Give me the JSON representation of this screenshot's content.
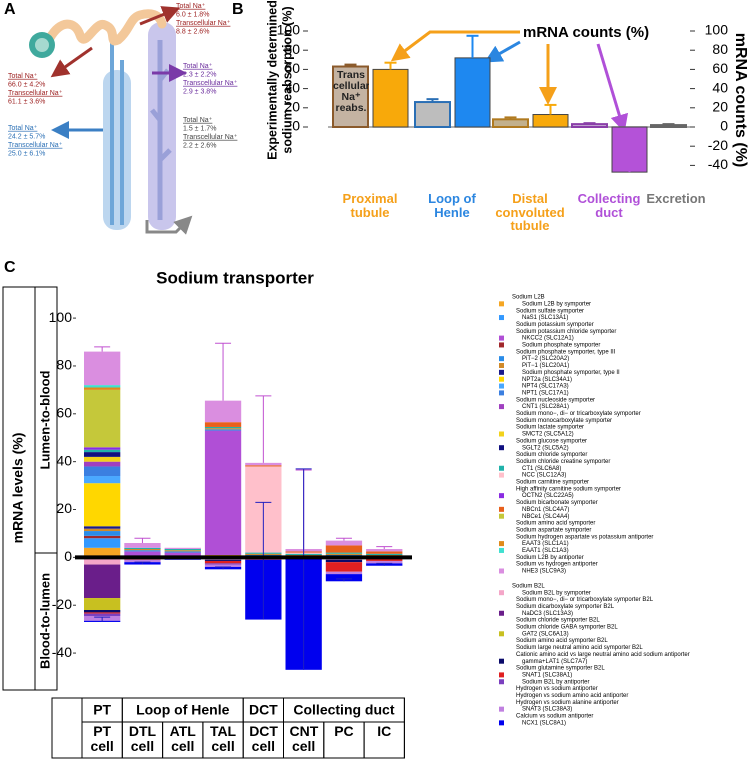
{
  "panel_labels": [
    "A",
    "B",
    "C"
  ],
  "panel_a": {
    "blocks": [
      {
        "color": "#9b1c1c",
        "lines": [
          "Total Na⁺",
          "6.0 ± 1.8%",
          "Transcellular Na⁺",
          "8.8 ± 2.6%"
        ]
      },
      {
        "color": "#9b1c1c",
        "lines": [
          "Total Na⁺",
          "66.0 ± 4.2%",
          "Transcellular Na⁺",
          "61.1 ± 3.6%"
        ]
      },
      {
        "color": "#6a2c9c",
        "lines": [
          "Total Na⁺",
          "2.3 ± 2.2%",
          "Transcellular Na⁺",
          "2.9 ± 3.8%"
        ]
      },
      {
        "color": "#2a6fb5",
        "lines": [
          "Total Na⁺",
          "24.2 ± 5.7%",
          "Transcellular Na⁺",
          "25.0 ± 6.1%"
        ]
      },
      {
        "color": "#444444",
        "lines": [
          "Total Na⁺",
          "1.5 ± 1.7%",
          "Transcellular Na⁺",
          "2.2 ± 2.6%"
        ]
      }
    ]
  },
  "chart_data": [
    {
      "type": "bar",
      "y_label_lines": [
        "Experimentally determined",
        "sodium reabsorption (%)"
      ],
      "y2_label": "mRNA counts (%)",
      "annotations": [
        "mRNA counts (%)",
        "Trans cellular Na⁺ reabs."
      ],
      "categories": [
        "Proximal tubule",
        "Loop of Henle",
        "Distal convoluted tubule",
        "Collecting duct",
        "Excretion"
      ],
      "category_colors": [
        "#f5a01a",
        "#2b86e0",
        "#f5a01a",
        "#b050d8",
        "#777777"
      ],
      "series": [
        {
          "values": [
            63,
            26,
            8,
            3,
            2
          ],
          "errors": [
            2,
            3,
            2,
            1,
            1
          ],
          "colors": [
            "#c4b3a2",
            "#bdbdbd",
            "#c2b08c",
            "#c8b0d6",
            "#bdbdbd"
          ]
        },
        {
          "axis": "y2",
          "values": [
            60,
            72,
            13,
            -47,
            null
          ],
          "errors": [
            7,
            23,
            10,
            44,
            null
          ],
          "colors": [
            "#f8a90a",
            "#1e88f0",
            "#f8a90a",
            "#b452d8",
            null
          ]
        }
      ],
      "ylim": [
        0,
        100
      ],
      "yticks": [
        0,
        20,
        40,
        60,
        80,
        100
      ],
      "y2lim": [
        -50,
        100
      ],
      "y2ticks": [
        100,
        80,
        60,
        40,
        20,
        0,
        -20,
        -40
      ]
    },
    {
      "type": "stacked-bar",
      "title": "Sodium transporter",
      "y_label": "mRNA levels (%)",
      "region_labels": [
        "Lumen-to-blood",
        "Blood-to-lumen"
      ],
      "categories": [
        "PT cell",
        "DTL cell",
        "ATL cell",
        "TAL cell",
        "DCT cell",
        "CNT cell",
        "PC",
        "IC"
      ],
      "groups": [
        "PT",
        "Loop of Henle",
        "DCT",
        "Collecting duct"
      ],
      "ylim": [
        -50,
        113
      ],
      "yticks": [
        -40,
        -20,
        0,
        20,
        40,
        60,
        80,
        100
      ],
      "positive_errors": [
        2,
        2,
        0,
        24,
        28,
        33,
        1,
        1
      ],
      "negative_errors": [
        2,
        1,
        0,
        1,
        49,
        84,
        1,
        1
      ],
      "legend": [
        {
          "label": "Sodium L2B"
        },
        {
          "label": "Sodium L2B by symporter",
          "color": "#f5a623",
          "values": [
            4,
            0.5,
            0,
            1,
            0.5,
            0,
            0.5,
            0
          ]
        },
        {
          "label": "Sodium sulfate symporter"
        },
        {
          "label": "NaS1 (SLC13A1)",
          "color": "#3399ff",
          "values": [
            4,
            0,
            0,
            0,
            0,
            0,
            0,
            0
          ]
        },
        {
          "label": "Sodium potassium symporter"
        },
        {
          "label": "Sodium potassium chloride symporter"
        },
        {
          "label": "NKCC2 (SLC12A1)",
          "color": "#b04fd6",
          "values": [
            0,
            2,
            2,
            52,
            0,
            0,
            0,
            0
          ]
        },
        {
          "label": "Sodium phosphate symporter",
          "color": "#a0282b",
          "values": [
            1,
            0,
            0,
            0,
            0,
            0,
            0,
            0
          ]
        },
        {
          "label": "Sodium phosphate symporter, type III"
        },
        {
          "label": "PiT−2 (SLC20A2)",
          "color": "#2a8ce8",
          "values": [
            2,
            0.5,
            0.5,
            0.5,
            0.5,
            0.5,
            0.5,
            0.5
          ]
        },
        {
          "label": "PiT−1 (SLC20A1)",
          "color": "#d08a2a",
          "values": [
            1,
            0.5,
            0.5,
            0.5,
            0.5,
            0.5,
            0.5,
            0.5
          ]
        },
        {
          "label": "Sodium phosphate symporter, type II",
          "color": "#1a1a8c",
          "values": [
            1,
            0,
            0,
            0,
            0,
            0,
            0,
            0
          ]
        },
        {
          "label": "NPT2a (SLC34A1)",
          "color": "#ffd700",
          "values": [
            18,
            0,
            0,
            0,
            0,
            0,
            0,
            0
          ]
        },
        {
          "label": "NPT4 (SLC17A3)",
          "color": "#4aa8ff",
          "values": [
            3,
            0,
            0,
            0,
            0,
            0,
            0,
            0
          ]
        },
        {
          "label": "NPT1 (SLC17A1)",
          "color": "#3b7fe0",
          "values": [
            4,
            0,
            0,
            0,
            0,
            0,
            0,
            0
          ]
        },
        {
          "label": "Sodium nucleoside symporter"
        },
        {
          "label": "CNT1 (SLC28A1)",
          "color": "#a040c0",
          "values": [
            2,
            0,
            0,
            0,
            0,
            0,
            0,
            0
          ]
        },
        {
          "label": "Sodium mono−, di− or tricarboxylate symporter"
        },
        {
          "label": "Sodium monocarboxylate symporter"
        },
        {
          "label": "Sodium lactate symporter"
        },
        {
          "label": "SMCT2 (SLC5A12)",
          "color": "#f2d21b",
          "values": [
            2,
            0,
            0,
            0,
            0,
            0,
            0,
            0
          ]
        },
        {
          "label": "Sodium glucose symporter"
        },
        {
          "label": "SGLT2 (SLC5A2)",
          "color": "#101080",
          "values": [
            2,
            0,
            0,
            0,
            0,
            0,
            0,
            0
          ]
        },
        {
          "label": "Sodium chloride symporter"
        },
        {
          "label": "Sodium chloride creatine symporter"
        },
        {
          "label": "CT1 (SLC6A8)",
          "color": "#20b2aa",
          "values": [
            1,
            0.5,
            0.5,
            0.5,
            0.5,
            0.5,
            0.5,
            0.5
          ]
        },
        {
          "label": "NCC (SLC12A3)",
          "color": "#ffc0cb",
          "values": [
            0,
            0,
            0,
            0,
            36,
            0.5,
            0,
            0
          ]
        },
        {
          "label": "Sodium carnitine symporter"
        },
        {
          "label": "High affinity carnitine sodium symporter"
        },
        {
          "label": "OCTN2 (SLC22A5)",
          "color": "#8a2be2",
          "values": [
            1,
            0,
            0,
            0,
            0,
            0,
            0,
            0
          ]
        },
        {
          "label": "Sodium bicarbonate symporter"
        },
        {
          "label": "NBCn1 (SLC4A7)",
          "color": "#e8601c",
          "values": [
            0,
            0,
            0,
            2,
            0.5,
            0.5,
            3,
            1
          ]
        },
        {
          "label": "NBCe1 (SLC4A4)",
          "color": "#c5c83a",
          "values": [
            24,
            0,
            0,
            0,
            0,
            0,
            0,
            0
          ]
        },
        {
          "label": "Sodium amino acid symporter"
        },
        {
          "label": "Sodium aspartate symporter"
        },
        {
          "label": "Sodium hydrogen aspartate vs potassium antiporter"
        },
        {
          "label": "EAAT3 (SLC1A1)",
          "color": "#e08a1a",
          "values": [
            1,
            0,
            0,
            0,
            0,
            0,
            0,
            0
          ]
        },
        {
          "label": "EAAT1 (SLC1A3)",
          "color": "#40e0d0",
          "values": [
            1,
            0,
            0,
            0,
            0,
            0,
            0,
            0
          ]
        },
        {
          "label": "Sodium L2B by antiporter"
        },
        {
          "label": "Sodium vs hydrogen antiporter"
        },
        {
          "label": "NHE3 (SLC9A3)",
          "color": "#da8ee0",
          "values": [
            14,
            2,
            0.5,
            9,
            1,
            1,
            2,
            1
          ]
        },
        {
          "label": "Sodium B2L"
        },
        {
          "label": "Sodium B2L by symporter",
          "color": "#f4a6c8",
          "values": [
            -3,
            0,
            0,
            -1,
            0,
            0,
            -1,
            0
          ]
        },
        {
          "label": "Sodium mono−, di− or tricarboxylate symporter B2L"
        },
        {
          "label": "Sodium dicarboxylate symporter B2L"
        },
        {
          "label": "NaDC3 (SLC13A3)",
          "color": "#6a1e8a",
          "values": [
            -14,
            0,
            0,
            0,
            0,
            0,
            0,
            0
          ]
        },
        {
          "label": "Sodium chloride symporter B2L"
        },
        {
          "label": "Sodium chloride GABA symporter B2L"
        },
        {
          "label": "GAT2 (SLC6A13)",
          "color": "#c8c020",
          "values": [
            -5,
            0,
            0,
            0,
            0,
            0,
            0,
            0
          ]
        },
        {
          "label": "Sodium amino acid symporter B2L"
        },
        {
          "label": "Sodium large neutral amino acid symporter B2L"
        },
        {
          "label": "Cationic amino acid vs large neutral amino acid sodium antiporter"
        },
        {
          "label": "gamma+LAT1 (SLC7A7)",
          "color": "#0a0a6a",
          "values": [
            -1,
            -0.5,
            0,
            -0.5,
            -0.5,
            0,
            -1,
            -0.5
          ]
        },
        {
          "label": "Sodium glutamine symporter B2L"
        },
        {
          "label": "SNAT1 (SLC38A1)",
          "color": "#e02020",
          "values": [
            -0.5,
            -0.5,
            0,
            -1,
            -0.5,
            0,
            -4,
            -1
          ]
        },
        {
          "label": "Sodium B2L by antiporter",
          "color": "#7b3fbf",
          "values": [
            -1,
            0,
            0,
            -0.5,
            0,
            0,
            0,
            0
          ]
        },
        {
          "label": "Hydrogen vs sodium antiporter"
        },
        {
          "label": "Hydrogen vs sodium amino acid antiporter"
        },
        {
          "label": "Hydrogen vs sodium alanine antiporter"
        },
        {
          "label": "SNAT3 (SLC38A3)",
          "color": "#c080e0",
          "values": [
            -2,
            -1,
            -0.5,
            -1,
            0,
            0,
            -1,
            -1
          ]
        },
        {
          "label": "Calcium vs sodium antiporter"
        },
        {
          "label": "NCX1 (SLC8A1)",
          "color": "#0000ee",
          "values": [
            -0.5,
            -1,
            -0.5,
            -1,
            -25,
            -47,
            -3,
            -1
          ]
        }
      ]
    }
  ]
}
